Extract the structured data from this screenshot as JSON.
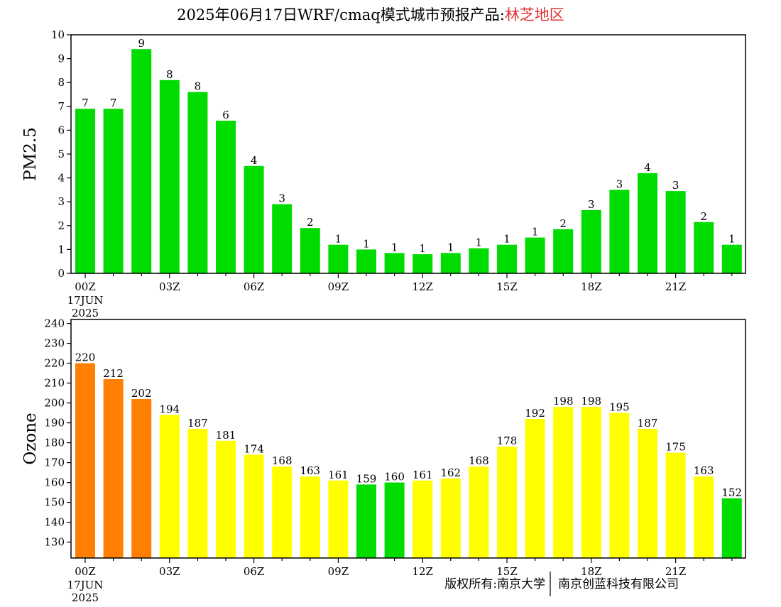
{
  "header": {
    "title_prefix": "2025年06月17日WRF/cmaq模式城市预报产品:",
    "title_region": "林芝地区"
  },
  "colors": {
    "green": "#00dc00",
    "yellow": "#ffff00",
    "orange": "#ff7f00",
    "region_text": "#e03030",
    "frame": "#000000"
  },
  "footer": {
    "copyright_left": "版权所有:南京大学",
    "copyright_right": "南京创蓝科技有限公司"
  },
  "chart_data": [
    {
      "type": "bar",
      "ylabel": "PM2.5",
      "ylim": [
        0,
        10
      ],
      "yticks": [
        0,
        1,
        2,
        3,
        4,
        5,
        6,
        7,
        8,
        9,
        10
      ],
      "xtick_labels": [
        "00Z",
        "03Z",
        "06Z",
        "09Z",
        "12Z",
        "15Z",
        "18Z",
        "21Z"
      ],
      "xtick_indices": [
        0,
        3,
        6,
        9,
        12,
        15,
        18,
        21
      ],
      "date_label": [
        "17JUN",
        "2025"
      ],
      "values": [
        6.9,
        6.9,
        9.4,
        8.1,
        7.6,
        6.4,
        4.5,
        2.9,
        1.9,
        1.2,
        1.0,
        0.85,
        0.8,
        0.85,
        1.05,
        1.2,
        1.5,
        1.85,
        2.65,
        3.5,
        4.2,
        3.45,
        2.15,
        1.2
      ],
      "labels": [
        "7",
        "7",
        "9",
        "8",
        "8",
        "6",
        "4",
        "3",
        "2",
        "1",
        "1",
        "1",
        "1",
        "1",
        "1",
        "1",
        "1",
        "2",
        "3",
        "3",
        "4",
        "3",
        "2",
        "1"
      ],
      "bar_colors": [
        "green",
        "green",
        "green",
        "green",
        "green",
        "green",
        "green",
        "green",
        "green",
        "green",
        "green",
        "green",
        "green",
        "green",
        "green",
        "green",
        "green",
        "green",
        "green",
        "green",
        "green",
        "green",
        "green",
        "green"
      ]
    },
    {
      "type": "bar",
      "ylabel": "Ozone",
      "ylim": [
        122,
        242
      ],
      "yticks": [
        130,
        140,
        150,
        160,
        170,
        180,
        190,
        200,
        210,
        220,
        230,
        240
      ],
      "xtick_labels": [
        "00Z",
        "03Z",
        "06Z",
        "09Z",
        "12Z",
        "15Z",
        "18Z",
        "21Z"
      ],
      "xtick_indices": [
        0,
        3,
        6,
        9,
        12,
        15,
        18,
        21
      ],
      "date_label": [
        "17JUN",
        "2025"
      ],
      "values": [
        220,
        212,
        202,
        194,
        187,
        181,
        174,
        168,
        163,
        161,
        159,
        160,
        161,
        162,
        168,
        178,
        192,
        198,
        198,
        195,
        187,
        175,
        163,
        152
      ],
      "labels": [
        "220",
        "212",
        "202",
        "194",
        "187",
        "181",
        "174",
        "168",
        "163",
        "161",
        "159",
        "160",
        "161",
        "162",
        "168",
        "178",
        "192",
        "198",
        "198",
        "195",
        "187",
        "175",
        "163",
        "152"
      ],
      "bar_colors": [
        "orange",
        "orange",
        "orange",
        "yellow",
        "yellow",
        "yellow",
        "yellow",
        "yellow",
        "yellow",
        "yellow",
        "green",
        "green",
        "yellow",
        "yellow",
        "yellow",
        "yellow",
        "yellow",
        "yellow",
        "yellow",
        "yellow",
        "yellow",
        "yellow",
        "yellow",
        "green"
      ]
    }
  ]
}
